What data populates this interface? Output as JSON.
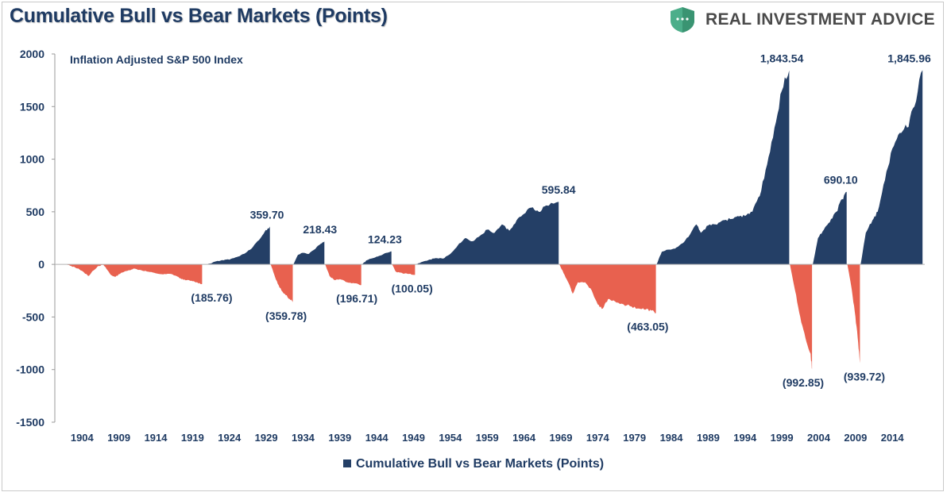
{
  "title": "Cumulative Bull vs Bear Markets (Points)",
  "brand": {
    "name": "REAL INVESTMENT ADVICE",
    "logo_icon": "shield-logo-icon",
    "color": "#4cae8a"
  },
  "colors": {
    "bull": "#243f66",
    "bear": "#e8614f",
    "text": "#1f3b63"
  },
  "chart_data": {
    "type": "area",
    "subtitle": "Inflation Adjusted S&P 500 Index",
    "legend": [
      "Cumulative Bull vs Bear Markets (Points)"
    ],
    "legend_position": "bottom",
    "ylim": [
      -1500,
      2000
    ],
    "yticks": [
      "2000",
      "1500",
      "1000",
      "500",
      "0",
      "-500",
      "-1000",
      "-1500"
    ],
    "xlim": [
      1900.3,
      2018.4
    ],
    "xticks": [
      "1904",
      "1909",
      "1914",
      "1919",
      "1924",
      "1929",
      "1934",
      "1939",
      "1944",
      "1949",
      "1954",
      "1959",
      "1964",
      "1969",
      "1974",
      "1979",
      "1984",
      "1989",
      "1994",
      "1999",
      "2004",
      "2009",
      "2014"
    ],
    "grid": false,
    "series": [
      {
        "name": "Cumulative Bull vs Bear Markets (Points)",
        "segments": [
          {
            "kind": "bear",
            "points": [
              [
                1901.8,
                0
              ],
              [
                1902.5,
                -15
              ],
              [
                1903.5,
                -40
              ],
              [
                1904.3,
                -80
              ],
              [
                1904.9,
                -110
              ],
              [
                1905.5,
                -60
              ],
              [
                1906.2,
                -15
              ],
              [
                1906.9,
                -5
              ],
              [
                1907.4,
                -50
              ],
              [
                1907.9,
                -100
              ],
              [
                1908.5,
                -120
              ],
              [
                1909.3,
                -80
              ],
              [
                1910.2,
                -60
              ],
              [
                1911.0,
                -40
              ],
              [
                1912.0,
                -55
              ],
              [
                1913.0,
                -70
              ],
              [
                1914.0,
                -85
              ],
              [
                1915.0,
                -95
              ],
              [
                1916.0,
                -90
              ],
              [
                1916.8,
                -110
              ],
              [
                1917.5,
                -140
              ],
              [
                1918.2,
                -150
              ],
              [
                1919.0,
                -160
              ],
              [
                1919.7,
                -175
              ],
              [
                1920.3,
                -185.76
              ]
            ]
          },
          {
            "kind": "bull",
            "points": [
              [
                1921.0,
                0
              ],
              [
                1922.0,
                25
              ],
              [
                1923.0,
                40
              ],
              [
                1924.0,
                45
              ],
              [
                1925.0,
                70
              ],
              [
                1926.0,
                100
              ],
              [
                1927.0,
                150
              ],
              [
                1928.0,
                230
              ],
              [
                1928.8,
                310
              ],
              [
                1929.5,
                359.7
              ]
            ]
          },
          {
            "kind": "bear",
            "points": [
              [
                1929.6,
                0
              ],
              [
                1930.2,
                -120
              ],
              [
                1930.8,
                -220
              ],
              [
                1931.5,
                -280
              ],
              [
                1932.2,
                -330
              ],
              [
                1932.6,
                -359.78
              ]
            ]
          },
          {
            "kind": "bull",
            "points": [
              [
                1932.7,
                0
              ],
              [
                1933.3,
                90
              ],
              [
                1934.0,
                110
              ],
              [
                1934.8,
                100
              ],
              [
                1935.5,
                140
              ],
              [
                1936.3,
                190
              ],
              [
                1936.9,
                218.43
              ]
            ]
          },
          {
            "kind": "bear",
            "points": [
              [
                1937.0,
                0
              ],
              [
                1937.6,
                -110
              ],
              [
                1938.3,
                -150
              ],
              [
                1939.0,
                -140
              ],
              [
                1940.0,
                -170
              ],
              [
                1941.0,
                -180
              ],
              [
                1941.9,
                -196.71
              ]
            ]
          },
          {
            "kind": "bull",
            "points": [
              [
                1942.0,
                0
              ],
              [
                1942.7,
                40
              ],
              [
                1943.5,
                60
              ],
              [
                1944.3,
                80
              ],
              [
                1945.3,
                110
              ],
              [
                1946.0,
                124.23
              ]
            ]
          },
          {
            "kind": "bear",
            "points": [
              [
                1946.1,
                0
              ],
              [
                1946.6,
                -70
              ],
              [
                1947.5,
                -85
              ],
              [
                1948.4,
                -90
              ],
              [
                1949.2,
                -100.05
              ]
            ]
          },
          {
            "kind": "bull",
            "points": [
              [
                1949.3,
                0
              ],
              [
                1950.0,
                20
              ],
              [
                1951.0,
                40
              ],
              [
                1952.0,
                60
              ],
              [
                1953.0,
                55
              ],
              [
                1954.0,
                100
              ],
              [
                1955.0,
                180
              ],
              [
                1956.0,
                250
              ],
              [
                1957.0,
                220
              ],
              [
                1958.0,
                270
              ],
              [
                1959.0,
                330
              ],
              [
                1960.0,
                300
              ],
              [
                1961.0,
                380
              ],
              [
                1962.0,
                320
              ],
              [
                1963.0,
                420
              ],
              [
                1964.0,
                480
              ],
              [
                1965.0,
                540
              ],
              [
                1966.0,
                500
              ],
              [
                1967.0,
                560
              ],
              [
                1968.7,
                595.84
              ]
            ]
          },
          {
            "kind": "bear",
            "points": [
              [
                1968.8,
                0
              ],
              [
                1969.5,
                -100
              ],
              [
                1970.2,
                -200
              ],
              [
                1970.6,
                -280
              ],
              [
                1971.3,
                -170
              ],
              [
                1972.3,
                -170
              ],
              [
                1973.2,
                -250
              ],
              [
                1974.0,
                -380
              ],
              [
                1974.7,
                -420
              ],
              [
                1975.4,
                -330
              ],
              [
                1976.3,
                -350
              ],
              [
                1977.5,
                -380
              ],
              [
                1978.6,
                -400
              ],
              [
                1979.6,
                -420
              ],
              [
                1980.5,
                -430
              ],
              [
                1981.3,
                -440
              ],
              [
                1981.9,
                -463.05
              ]
            ]
          },
          {
            "kind": "bull",
            "points": [
              [
                1982.0,
                0
              ],
              [
                1982.7,
                120
              ],
              [
                1983.5,
                140
              ],
              [
                1984.5,
                150
              ],
              [
                1985.5,
                200
              ],
              [
                1986.5,
                280
              ],
              [
                1987.4,
                380
              ],
              [
                1988.0,
                300
              ],
              [
                1989.0,
                370
              ],
              [
                1990.0,
                380
              ],
              [
                1991.0,
                420
              ],
              [
                1992.0,
                430
              ],
              [
                1993.0,
                460
              ],
              [
                1994.0,
                460
              ],
              [
                1995.0,
                500
              ],
              [
                1996.0,
                650
              ],
              [
                1997.0,
                950
              ],
              [
                1998.0,
                1300
              ],
              [
                1999.0,
                1650
              ],
              [
                2000.0,
                1843.54
              ]
            ]
          },
          {
            "kind": "bear",
            "points": [
              [
                2000.1,
                0
              ],
              [
                2000.8,
                -250
              ],
              [
                2001.5,
                -500
              ],
              [
                2002.2,
                -700
              ],
              [
                2002.9,
                -850
              ],
              [
                2003.1,
                -992.85
              ]
            ]
          },
          {
            "kind": "bull",
            "points": [
              [
                2003.2,
                0
              ],
              [
                2003.9,
                250
              ],
              [
                2004.7,
                330
              ],
              [
                2005.5,
                400
              ],
              [
                2006.4,
                500
              ],
              [
                2007.2,
                620
              ],
              [
                2007.8,
                690.1
              ]
            ]
          },
          {
            "kind": "bear",
            "points": [
              [
                2007.9,
                0
              ],
              [
                2008.4,
                -200
              ],
              [
                2008.9,
                -450
              ],
              [
                2009.3,
                -700
              ],
              [
                2009.6,
                -939.72
              ]
            ]
          },
          {
            "kind": "bull",
            "points": [
              [
                2009.7,
                0
              ],
              [
                2010.4,
                300
              ],
              [
                2011.3,
                420
              ],
              [
                2012.0,
                500
              ],
              [
                2013.0,
                800
              ],
              [
                2014.0,
                1100
              ],
              [
                2015.0,
                1250
              ],
              [
                2016.0,
                1300
              ],
              [
                2017.0,
                1500
              ],
              [
                2018.1,
                1845.96
              ]
            ]
          }
        ]
      }
    ],
    "annotations": [
      {
        "label": "(185.76)",
        "x": 1921.6,
        "y": -185.76,
        "place": "below"
      },
      {
        "label": "359.70",
        "x": 1929.1,
        "y": 359.7,
        "place": "above"
      },
      {
        "label": "(359.78)",
        "x": 1931.7,
        "y": -359.78,
        "place": "below"
      },
      {
        "label": "218.43",
        "x": 1936.3,
        "y": 218.43,
        "place": "above"
      },
      {
        "label": "(196.71)",
        "x": 1941.3,
        "y": -196.71,
        "place": "below"
      },
      {
        "label": "124.23",
        "x": 1945.1,
        "y": 124.23,
        "place": "above"
      },
      {
        "label": "(100.05)",
        "x": 1948.8,
        "y": -100.05,
        "place": "below"
      },
      {
        "label": "595.84",
        "x": 1968.7,
        "y": 595.84,
        "place": "above"
      },
      {
        "label": "(463.05)",
        "x": 1980.8,
        "y": -463.05,
        "place": "below"
      },
      {
        "label": "1,843.54",
        "x": 1999.0,
        "y": 1843.54,
        "place": "above"
      },
      {
        "label": "690.10",
        "x": 2007.0,
        "y": 690.1,
        "place": "above"
      },
      {
        "label": "(992.85)",
        "x": 2001.9,
        "y": -992.85,
        "place": "below"
      },
      {
        "label": "(939.72)",
        "x": 2010.2,
        "y": -939.72,
        "place": "below"
      },
      {
        "label": "1,845.96",
        "x": 2016.3,
        "y": 1845.96,
        "place": "above"
      }
    ]
  }
}
